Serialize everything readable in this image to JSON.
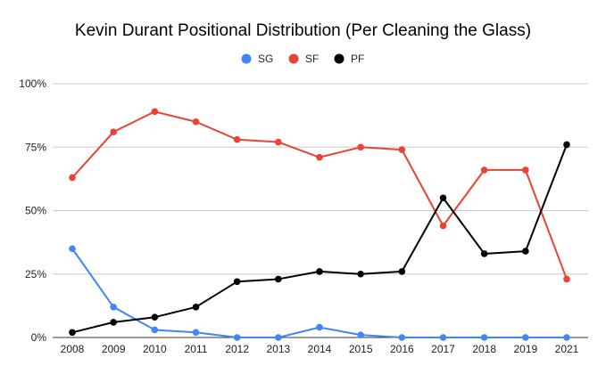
{
  "chart_data": {
    "type": "line",
    "title": "Kevin Durant Positional Distribution (Per Cleaning the Glass)",
    "xlabel": "",
    "ylabel": "",
    "categories": [
      "2008",
      "2009",
      "2010",
      "2011",
      "2012",
      "2013",
      "2014",
      "2015",
      "2016",
      "2017",
      "2018",
      "2019",
      "2021"
    ],
    "series": [
      {
        "name": "SG",
        "color": "#4285f4",
        "values": [
          35,
          12,
          3,
          2,
          0,
          0,
          4,
          1,
          0,
          0,
          0,
          0,
          0
        ]
      },
      {
        "name": "SF",
        "color": "#ea4335",
        "values": [
          63,
          81,
          89,
          85,
          78,
          77,
          71,
          75,
          74,
          44,
          66,
          66,
          23
        ]
      },
      {
        "name": "PF",
        "color": "#000000",
        "values": [
          2,
          6,
          8,
          12,
          22,
          23,
          26,
          25,
          26,
          55,
          33,
          34,
          76
        ]
      }
    ],
    "ylim": [
      0,
      100
    ],
    "yticks": [
      0,
      25,
      50,
      75,
      100
    ],
    "ytick_labels": [
      "0%",
      "25%",
      "50%",
      "75%",
      "100%"
    ],
    "grid": true,
    "legend_position": "top-center"
  }
}
